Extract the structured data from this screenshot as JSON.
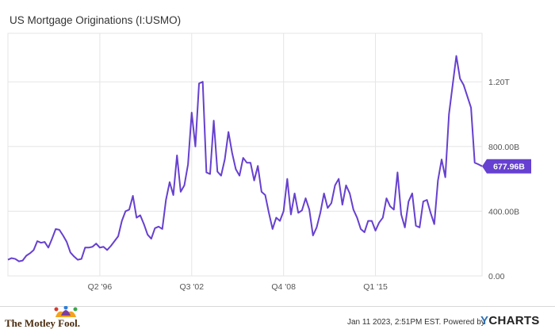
{
  "chart_data": {
    "type": "line",
    "title": "US Mortgage Originations (I:USMO)",
    "xlabel": "",
    "ylabel": "",
    "x_tick_labels": [
      "Q2 '96",
      "Q3 '02",
      "Q4 '08",
      "Q1 '15"
    ],
    "y_tick_labels": [
      "0.00",
      "400.00B",
      "800.00B",
      "1.20T"
    ],
    "ylim": [
      0,
      1500
    ],
    "y_unit": "billions USD",
    "grid": true,
    "last_value_label": "677.96B",
    "series": [
      {
        "color": "#6640d0",
        "x_start": "1990 Q1",
        "frequency": "quarterly",
        "values": [
          100,
          110,
          105,
          90,
          95,
          125,
          140,
          160,
          215,
          205,
          210,
          175,
          230,
          290,
          285,
          250,
          210,
          145,
          120,
          100,
          105,
          175,
          175,
          180,
          200,
          175,
          180,
          160,
          185,
          215,
          245,
          340,
          400,
          410,
          495,
          360,
          375,
          320,
          255,
          230,
          295,
          305,
          290,
          470,
          580,
          500,
          745,
          520,
          560,
          690,
          1010,
          800,
          1190,
          1200,
          640,
          630,
          960,
          645,
          620,
          720,
          890,
          760,
          660,
          620,
          730,
          700,
          700,
          590,
          680,
          520,
          500,
          390,
          290,
          360,
          340,
          400,
          600,
          380,
          510,
          390,
          405,
          480,
          410,
          250,
          300,
          390,
          510,
          420,
          450,
          560,
          600,
          440,
          560,
          510,
          410,
          360,
          290,
          270,
          340,
          340,
          280,
          330,
          360,
          480,
          430,
          410,
          640,
          380,
          300,
          460,
          510,
          310,
          300,
          460,
          470,
          390,
          320,
          590,
          720,
          610,
          1000,
          1180,
          1360,
          1220,
          1180,
          1110,
          1040,
          700,
          690,
          678
        ]
      }
    ]
  },
  "footer": {
    "brand": "The Motley Fool.",
    "timestamp": "Jan 11 2023, 2:51PM EST.",
    "powered_by": "Powered by",
    "ycharts_y": "Y",
    "ycharts_rest": "CHARTS"
  },
  "colors": {
    "line": "#6640d0",
    "grid": "#e5e5e5",
    "label_bg": "#6640d0",
    "label_text": "#ffffff"
  },
  "icons": [
    "jester-hat-icon"
  ]
}
